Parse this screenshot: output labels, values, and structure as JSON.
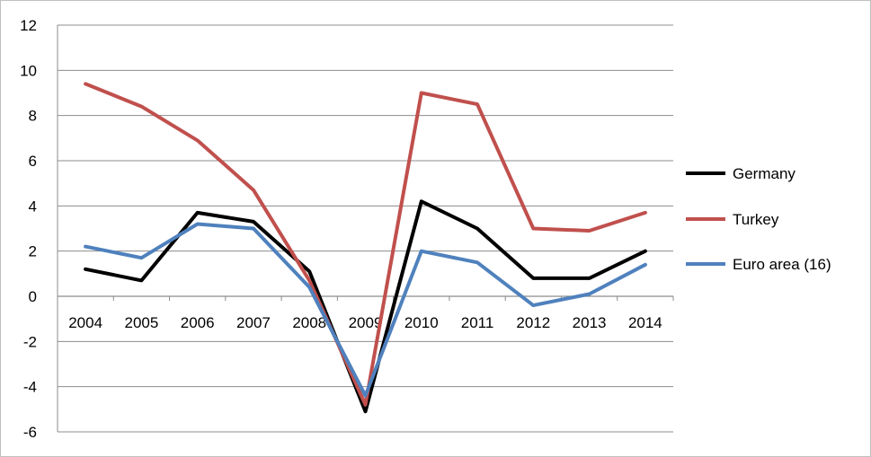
{
  "chart_data": {
    "type": "line",
    "categories": [
      "2004",
      "2005",
      "2006",
      "2007",
      "2008",
      "2009",
      "2010",
      "2011",
      "2012",
      "2013",
      "2014"
    ],
    "series": [
      {
        "name": "Germany",
        "color": "#000000",
        "values": [
          1.2,
          0.7,
          3.7,
          3.3,
          1.1,
          -5.1,
          4.2,
          3.0,
          0.8,
          0.8,
          2.0
        ]
      },
      {
        "name": "Turkey",
        "color": "#c0504d",
        "values": [
          9.4,
          8.4,
          6.9,
          4.7,
          0.7,
          -4.8,
          9.0,
          8.5,
          3.0,
          2.9,
          3.7
        ]
      },
      {
        "name": "Euro area (16)",
        "color": "#4f81bd",
        "values": [
          2.2,
          1.7,
          3.2,
          3.0,
          0.4,
          -4.4,
          2.0,
          1.5,
          -0.4,
          0.1,
          1.4
        ]
      }
    ],
    "ylim": [
      -6,
      12
    ],
    "yticks": [
      "-6",
      "-4",
      "-2",
      "0",
      "2",
      "4",
      "6",
      "8",
      "10",
      "12"
    ],
    "grid": true,
    "legend_position": "right"
  }
}
